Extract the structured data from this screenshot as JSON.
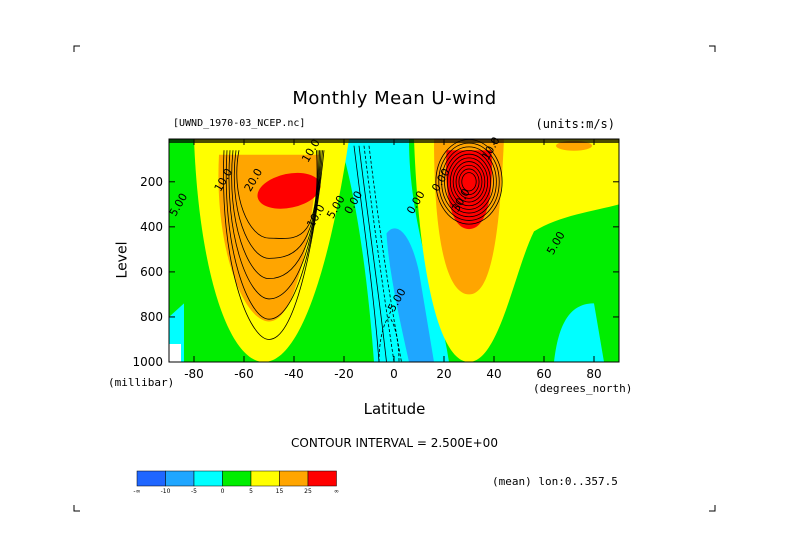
{
  "chart_data": {
    "type": "contour",
    "title": "Monthly Mean U-wind",
    "file_label": "[UWND_1970-03_NCEP.nc]",
    "units_label": "(units:m/s)",
    "xlabel": "Latitude",
    "x_units": "(degrees_north)",
    "ylabel": "Level",
    "y_units": "(millibar)",
    "xlim": [
      -90,
      90
    ],
    "ylim": [
      1000,
      10
    ],
    "x_ticks": [
      -80,
      -60,
      -40,
      -20,
      0,
      20,
      40,
      60,
      80
    ],
    "y_ticks": [
      200,
      400,
      600,
      800,
      1000
    ],
    "x_tick_labels": [
      "-80",
      "-60",
      "-40",
      "-20",
      "0",
      "20",
      "40",
      "60",
      "80"
    ],
    "y_tick_labels": [
      "200",
      "400",
      "600",
      "800",
      "1000"
    ],
    "contour_interval_text": "CONTOUR INTERVAL = 2.500E+00",
    "mean_text": "(mean) lon:0..357.5",
    "contour_labels": [
      {
        "text": "20.0",
        "lat": -55,
        "lev": 200
      },
      {
        "text": "10.0",
        "lat": -67,
        "lev": 200
      },
      {
        "text": "5.00",
        "lat": -85,
        "lev": 310
      },
      {
        "text": "10.0",
        "lat": -32,
        "lev": 70
      },
      {
        "text": "10.0",
        "lat": -30,
        "lev": 360
      },
      {
        "text": "5.00",
        "lat": -22,
        "lev": 320
      },
      {
        "text": "0.00",
        "lat": -15,
        "lev": 300
      },
      {
        "text": "30.0",
        "lat": 28,
        "lev": 290
      },
      {
        "text": "10.0",
        "lat": 40,
        "lev": 60
      },
      {
        "text": "5.00",
        "lat": 66,
        "lev": 480
      },
      {
        "text": "0.00",
        "lat": 20,
        "lev": 200
      },
      {
        "text": "0.00",
        "lat": 10,
        "lev": 300
      },
      {
        "text": "-5.00",
        "lat": 2,
        "lev": 740
      }
    ],
    "colorbar": {
      "colors": [
        "#1f66ff",
        "#1fa6ff",
        "#00ffff",
        "#00ee00",
        "#ffff00",
        "#ffa500",
        "#ff0000"
      ],
      "labels": [
        "-∞",
        "-10",
        "-5",
        "0",
        "5",
        "15",
        "25",
        "∞"
      ]
    },
    "fill_colors": {
      "neg": "#00ffff",
      "neg_strong": "#1fa6ff",
      "low": "#00ee00",
      "mid": "#ffff00",
      "high": "#ffa500",
      "max": "#ff0000",
      "missing": "#ffffff"
    }
  }
}
